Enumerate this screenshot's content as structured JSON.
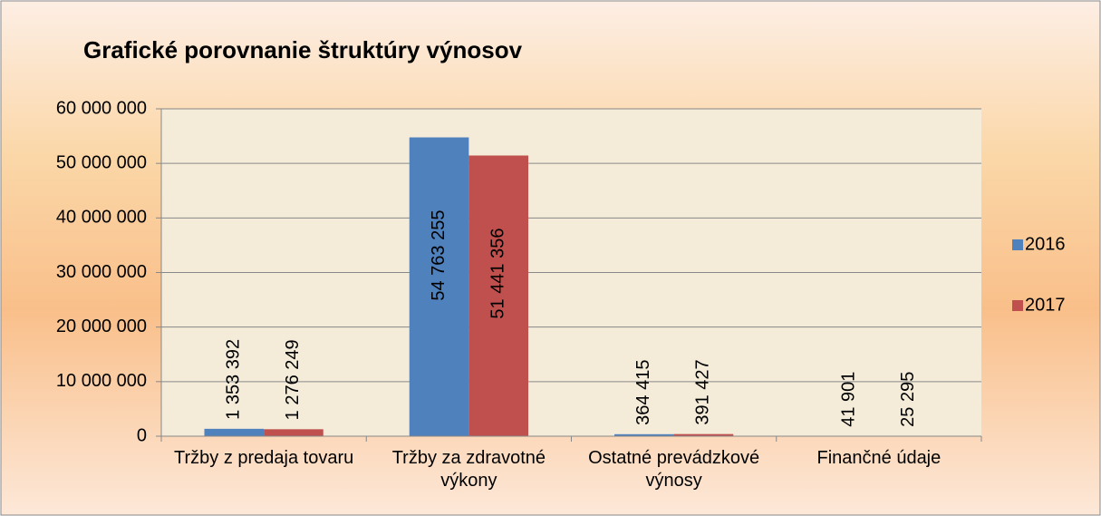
{
  "chart_data": {
    "type": "bar",
    "title": "Grafické porovnanie štruktúry výnosov",
    "categories": [
      "Tržby z predaja tovaru",
      "Tržby za zdravotné výkony",
      "Ostatné prevádzkové výnosy",
      "Finančné údaje"
    ],
    "series": [
      {
        "name": "2016",
        "color": "#4f81bd",
        "values": [
          1353392,
          54763255,
          364415,
          41901
        ],
        "value_labels": [
          "1 353 392",
          "54 763 255",
          "364 415",
          "41 901"
        ]
      },
      {
        "name": "2017",
        "color": "#c0504d",
        "values": [
          1276249,
          51441356,
          391427,
          25295
        ],
        "value_labels": [
          "1 276 249",
          "51 441 356",
          "391 427",
          "25 295"
        ]
      }
    ],
    "ylim": [
      0,
      60000000
    ],
    "yticks": [
      0,
      {
        "value": 10000000,
        "label": "10 000 000"
      },
      {
        "value": 20000000,
        "label": "20 000 000"
      },
      {
        "value": 30000000,
        "label": "30 000 000"
      },
      {
        "value": 40000000,
        "label": "40 000 000"
      },
      {
        "value": 50000000,
        "label": "50 000 000"
      },
      {
        "value": 60000000,
        "label": "60 000 000"
      }
    ],
    "grid": true,
    "legend": "right"
  }
}
